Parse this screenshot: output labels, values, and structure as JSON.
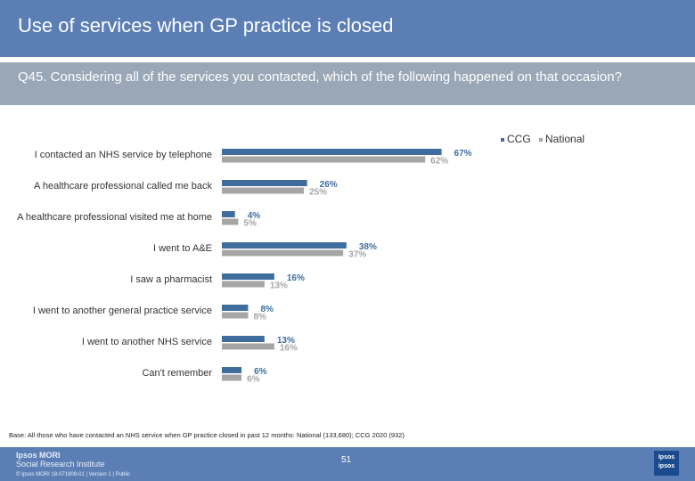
{
  "header": {
    "title": "Use of services when GP practice is closed",
    "question": "Q45. Considering all of the services you contacted, which of the following happened on that occasion?"
  },
  "colors": {
    "ccg": "#3f6e9e",
    "national": "#a6a6a6",
    "header_bg": "#5b7fb5",
    "question_bg": "#99a7b6"
  },
  "legend": {
    "ccg_label": "CCG",
    "national_label": "National"
  },
  "chart_data": {
    "type": "bar",
    "orientation": "horizontal",
    "categories": [
      "I contacted an NHS service by telephone",
      "A healthcare professional called me back",
      "A healthcare professional visited me at home",
      "I went to A&E",
      "I saw a pharmacist",
      "I went to another general practice service",
      "I  went to another NHS service",
      "Can't remember"
    ],
    "series": [
      {
        "name": "CCG",
        "values": [
          67,
          26,
          4,
          38,
          16,
          8,
          13,
          6
        ],
        "labels": [
          "67%",
          "26%",
          "4%",
          "38%",
          "16%",
          "8%",
          "13%",
          "6%"
        ]
      },
      {
        "name": "National",
        "values": [
          62,
          25,
          5,
          37,
          13,
          8,
          16,
          6
        ],
        "labels": [
          "62%",
          "25%",
          "5%",
          "37%",
          "13%",
          "8%",
          "16%",
          "6%"
        ]
      }
    ],
    "xlim": [
      0,
      100
    ],
    "grid": false,
    "legend_position": "top-right"
  },
  "base_note": "Base: All those who have contacted an NHS service when GP practice closed in past 12 months: National (133,680); CCG 2020 (932)",
  "footer": {
    "brand_line1": "Ipsos MORI",
    "brand_line2": "Social Research Institute",
    "copyright": "© Ipsos MORI      18-071809-01 | Version 1 | Public",
    "page_number": "51",
    "logo_line1": "Ipsos",
    "logo_line2": "ipsos"
  }
}
